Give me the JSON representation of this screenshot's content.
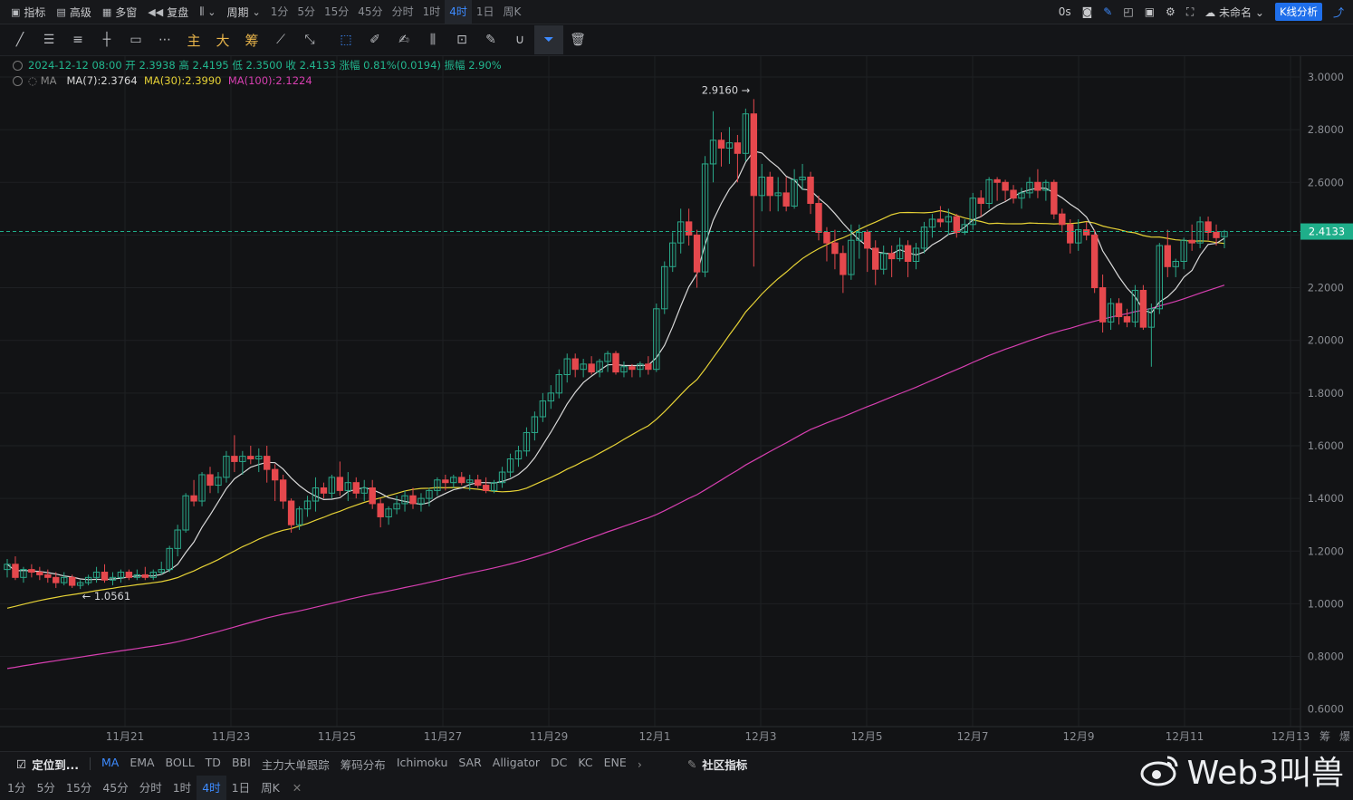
{
  "topbar": {
    "indicator": "指标",
    "advanced": "高级",
    "multiwindow": "多窗",
    "replay": "复盘",
    "period_menu": "周期",
    "periods": [
      "1分",
      "5分",
      "15分",
      "45分",
      "分时",
      "1时",
      "4时",
      "1日",
      "周K"
    ],
    "active_period": "4时",
    "countdown": "0s",
    "layout_name": "未命名",
    "k_analysis": "K线分析"
  },
  "toolbar": {
    "text_tools": [
      "主",
      "大",
      "筹"
    ]
  },
  "legend": {
    "ohlc": "2024-12-12 08:00  开 2.3938  高 2.4195  低 2.3500  收 2.4133  涨幅 0.81%(0.0194)  振幅 2.90%",
    "ma_label": "MA",
    "ma7": "MA(7):2.3764",
    "ma30": "MA(30):2.3990",
    "ma100": "MA(100):2.1224"
  },
  "colors": {
    "up": "#2aa889",
    "down": "#e5484d",
    "ma7": "#d9d9d9",
    "ma30": "#e6d236",
    "ma100": "#d63fb0",
    "price_line": "#1fae8a",
    "accent": "#3d8bff"
  },
  "chart_data": {
    "type": "candlestick",
    "ylim": [
      0.5,
      3.05
    ],
    "y_ticks": [
      "3.0000",
      "2.8000",
      "2.6000",
      "2.4000",
      "2.2000",
      "2.0000",
      "1.8000",
      "1.6000",
      "1.4000",
      "1.2000",
      "1.0000",
      "0.8000",
      "0.6000"
    ],
    "x_ticks": [
      "11月21",
      "11月23",
      "11月25",
      "11月27",
      "11月29",
      "12月1",
      "12月3",
      "12月5",
      "12月7",
      "12月9",
      "12月11",
      "12月13"
    ],
    "current_price": "2.4133",
    "high_label": "2.9160",
    "low_label": "1.0561",
    "candles": [
      [
        1.13,
        1.17,
        1.1,
        1.15
      ],
      [
        1.15,
        1.18,
        1.09,
        1.1
      ],
      [
        1.1,
        1.14,
        1.08,
        1.13
      ],
      [
        1.13,
        1.15,
        1.1,
        1.12
      ],
      [
        1.12,
        1.14,
        1.09,
        1.11
      ],
      [
        1.11,
        1.13,
        1.08,
        1.1
      ],
      [
        1.1,
        1.12,
        1.06,
        1.08
      ],
      [
        1.08,
        1.12,
        1.07,
        1.1
      ],
      [
        1.1,
        1.11,
        1.06,
        1.07
      ],
      [
        1.07,
        1.09,
        1.0561,
        1.08
      ],
      [
        1.08,
        1.11,
        1.07,
        1.1
      ],
      [
        1.1,
        1.14,
        1.08,
        1.12
      ],
      [
        1.12,
        1.15,
        1.08,
        1.09
      ],
      [
        1.09,
        1.12,
        1.07,
        1.1
      ],
      [
        1.1,
        1.13,
        1.08,
        1.12
      ],
      [
        1.12,
        1.13,
        1.09,
        1.1
      ],
      [
        1.1,
        1.13,
        1.09,
        1.11
      ],
      [
        1.11,
        1.14,
        1.09,
        1.1
      ],
      [
        1.1,
        1.13,
        1.09,
        1.12
      ],
      [
        1.12,
        1.16,
        1.11,
        1.13
      ],
      [
        1.13,
        1.22,
        1.12,
        1.21
      ],
      [
        1.21,
        1.3,
        1.18,
        1.28
      ],
      [
        1.28,
        1.42,
        1.27,
        1.41
      ],
      [
        1.41,
        1.47,
        1.37,
        1.39
      ],
      [
        1.39,
        1.5,
        1.37,
        1.49
      ],
      [
        1.49,
        1.52,
        1.42,
        1.45
      ],
      [
        1.45,
        1.5,
        1.42,
        1.48
      ],
      [
        1.48,
        1.58,
        1.46,
        1.56
      ],
      [
        1.56,
        1.64,
        1.5,
        1.54
      ],
      [
        1.54,
        1.58,
        1.49,
        1.56
      ],
      [
        1.56,
        1.6,
        1.53,
        1.55
      ],
      [
        1.55,
        1.59,
        1.5,
        1.56
      ],
      [
        1.56,
        1.6,
        1.46,
        1.51
      ],
      [
        1.51,
        1.53,
        1.39,
        1.47
      ],
      [
        1.47,
        1.49,
        1.36,
        1.39
      ],
      [
        1.39,
        1.4,
        1.27,
        1.3
      ],
      [
        1.3,
        1.37,
        1.28,
        1.36
      ],
      [
        1.36,
        1.41,
        1.33,
        1.39
      ],
      [
        1.39,
        1.48,
        1.35,
        1.44
      ],
      [
        1.44,
        1.46,
        1.4,
        1.42
      ],
      [
        1.42,
        1.49,
        1.4,
        1.48
      ],
      [
        1.48,
        1.54,
        1.41,
        1.43
      ],
      [
        1.43,
        1.5,
        1.39,
        1.46
      ],
      [
        1.46,
        1.48,
        1.4,
        1.42
      ],
      [
        1.42,
        1.47,
        1.39,
        1.44
      ],
      [
        1.44,
        1.47,
        1.36,
        1.38
      ],
      [
        1.38,
        1.4,
        1.29,
        1.33
      ],
      [
        1.33,
        1.37,
        1.3,
        1.36
      ],
      [
        1.36,
        1.41,
        1.34,
        1.38
      ],
      [
        1.38,
        1.43,
        1.35,
        1.41
      ],
      [
        1.41,
        1.44,
        1.36,
        1.38
      ],
      [
        1.38,
        1.42,
        1.35,
        1.4
      ],
      [
        1.4,
        1.44,
        1.37,
        1.43
      ],
      [
        1.43,
        1.48,
        1.41,
        1.47
      ],
      [
        1.47,
        1.49,
        1.43,
        1.46
      ],
      [
        1.46,
        1.49,
        1.44,
        1.48
      ],
      [
        1.48,
        1.5,
        1.45,
        1.46
      ],
      [
        1.46,
        1.49,
        1.43,
        1.47
      ],
      [
        1.47,
        1.49,
        1.44,
        1.45
      ],
      [
        1.45,
        1.48,
        1.42,
        1.43
      ],
      [
        1.43,
        1.47,
        1.42,
        1.46
      ],
      [
        1.46,
        1.52,
        1.44,
        1.5
      ],
      [
        1.5,
        1.57,
        1.48,
        1.55
      ],
      [
        1.55,
        1.6,
        1.52,
        1.58
      ],
      [
        1.58,
        1.67,
        1.56,
        1.65
      ],
      [
        1.65,
        1.73,
        1.62,
        1.71
      ],
      [
        1.71,
        1.8,
        1.69,
        1.77
      ],
      [
        1.77,
        1.83,
        1.74,
        1.8
      ],
      [
        1.8,
        1.89,
        1.78,
        1.87
      ],
      [
        1.87,
        1.95,
        1.84,
        1.93
      ],
      [
        1.93,
        1.95,
        1.86,
        1.89
      ],
      [
        1.89,
        1.93,
        1.86,
        1.91
      ],
      [
        1.91,
        1.94,
        1.87,
        1.88
      ],
      [
        1.88,
        1.93,
        1.86,
        1.92
      ],
      [
        1.92,
        1.96,
        1.88,
        1.95
      ],
      [
        1.95,
        1.96,
        1.87,
        1.88
      ],
      [
        1.88,
        1.92,
        1.86,
        1.9
      ],
      [
        1.9,
        1.91,
        1.86,
        1.89
      ],
      [
        1.89,
        1.92,
        1.86,
        1.91
      ],
      [
        1.91,
        1.94,
        1.87,
        1.89
      ],
      [
        1.89,
        2.14,
        1.88,
        2.12
      ],
      [
        2.12,
        2.3,
        2.1,
        2.28
      ],
      [
        2.28,
        2.41,
        2.26,
        2.37
      ],
      [
        2.37,
        2.5,
        2.33,
        2.45
      ],
      [
        2.45,
        2.5,
        2.36,
        2.4
      ],
      [
        2.4,
        2.42,
        2.2,
        2.26
      ],
      [
        2.26,
        2.7,
        2.24,
        2.67
      ],
      [
        2.67,
        2.87,
        2.6,
        2.76
      ],
      [
        2.76,
        2.79,
        2.66,
        2.73
      ],
      [
        2.73,
        2.81,
        2.67,
        2.75
      ],
      [
        2.75,
        2.78,
        2.6,
        2.71
      ],
      [
        2.71,
        2.88,
        2.68,
        2.86
      ],
      [
        2.86,
        2.916,
        2.28,
        2.55
      ],
      [
        2.55,
        2.67,
        2.49,
        2.62
      ],
      [
        2.62,
        2.64,
        2.49,
        2.55
      ],
      [
        2.55,
        2.62,
        2.49,
        2.56
      ],
      [
        2.56,
        2.62,
        2.49,
        2.51
      ],
      [
        2.51,
        2.65,
        2.5,
        2.61
      ],
      [
        2.61,
        2.67,
        2.57,
        2.62
      ],
      [
        2.62,
        2.64,
        2.48,
        2.52
      ],
      [
        2.52,
        2.55,
        2.38,
        2.41
      ],
      [
        2.41,
        2.43,
        2.3,
        2.37
      ],
      [
        2.37,
        2.42,
        2.27,
        2.33
      ],
      [
        2.33,
        2.36,
        2.18,
        2.25
      ],
      [
        2.25,
        2.44,
        2.23,
        2.38
      ],
      [
        2.38,
        2.44,
        2.31,
        2.41
      ],
      [
        2.41,
        2.42,
        2.26,
        2.35
      ],
      [
        2.35,
        2.38,
        2.21,
        2.27
      ],
      [
        2.27,
        2.36,
        2.25,
        2.33
      ],
      [
        2.33,
        2.36,
        2.24,
        2.31
      ],
      [
        2.31,
        2.39,
        2.3,
        2.36
      ],
      [
        2.36,
        2.38,
        2.24,
        2.3
      ],
      [
        2.3,
        2.37,
        2.27,
        2.35
      ],
      [
        2.35,
        2.45,
        2.33,
        2.43
      ],
      [
        2.43,
        2.48,
        2.39,
        2.46
      ],
      [
        2.46,
        2.51,
        2.43,
        2.45
      ],
      [
        2.45,
        2.5,
        2.4,
        2.47
      ],
      [
        2.47,
        2.48,
        2.39,
        2.41
      ],
      [
        2.41,
        2.46,
        2.4,
        2.44
      ],
      [
        2.44,
        2.56,
        2.42,
        2.54
      ],
      [
        2.54,
        2.57,
        2.47,
        2.52
      ],
      [
        2.52,
        2.62,
        2.5,
        2.61
      ],
      [
        2.61,
        2.62,
        2.53,
        2.6
      ],
      [
        2.6,
        2.61,
        2.53,
        2.57
      ],
      [
        2.57,
        2.59,
        2.52,
        2.54
      ],
      [
        2.54,
        2.58,
        2.5,
        2.56
      ],
      [
        2.56,
        2.62,
        2.54,
        2.6
      ],
      [
        2.6,
        2.65,
        2.54,
        2.57
      ],
      [
        2.57,
        2.61,
        2.53,
        2.6
      ],
      [
        2.6,
        2.61,
        2.46,
        2.48
      ],
      [
        2.48,
        2.5,
        2.41,
        2.44
      ],
      [
        2.44,
        2.46,
        2.33,
        2.37
      ],
      [
        2.37,
        2.46,
        2.34,
        2.42
      ],
      [
        2.42,
        2.45,
        2.38,
        2.4
      ],
      [
        2.4,
        2.42,
        2.18,
        2.2
      ],
      [
        2.2,
        2.25,
        2.03,
        2.07
      ],
      [
        2.07,
        2.16,
        2.04,
        2.14
      ],
      [
        2.14,
        2.16,
        2.06,
        2.09
      ],
      [
        2.09,
        2.12,
        2.05,
        2.07
      ],
      [
        2.07,
        2.21,
        2.05,
        2.19
      ],
      [
        2.19,
        2.21,
        2.04,
        2.05
      ],
      [
        2.05,
        2.14,
        1.9,
        2.12
      ],
      [
        2.12,
        2.37,
        2.1,
        2.36
      ],
      [
        2.36,
        2.42,
        2.24,
        2.28
      ],
      [
        2.28,
        2.31,
        2.24,
        2.3
      ],
      [
        2.3,
        2.39,
        2.27,
        2.38
      ],
      [
        2.38,
        2.44,
        2.34,
        2.37
      ],
      [
        2.37,
        2.47,
        2.35,
        2.45
      ],
      [
        2.45,
        2.47,
        2.38,
        2.41
      ],
      [
        2.41,
        2.44,
        2.36,
        2.39
      ],
      [
        2.3938,
        2.4195,
        2.35,
        2.4133
      ]
    ]
  },
  "bottom_indicators": [
    "MA",
    "EMA",
    "BOLL",
    "TD",
    "BBI",
    "主力大单跟踪",
    "筹码分布",
    "Ichimoku",
    "SAR",
    "Alligator",
    "DC",
    "KC",
    "ENE"
  ],
  "bottom_lock": "定位到...",
  "community_indicator": "社区指标",
  "bottom_periods": [
    "1分",
    "5分",
    "15分",
    "45分",
    "分时",
    "1时",
    "4时",
    "1日",
    "周K"
  ],
  "bottom_active_period": "4时",
  "right_edge_labels": [
    "筹",
    "爆"
  ],
  "watermark": "Web3叫兽"
}
